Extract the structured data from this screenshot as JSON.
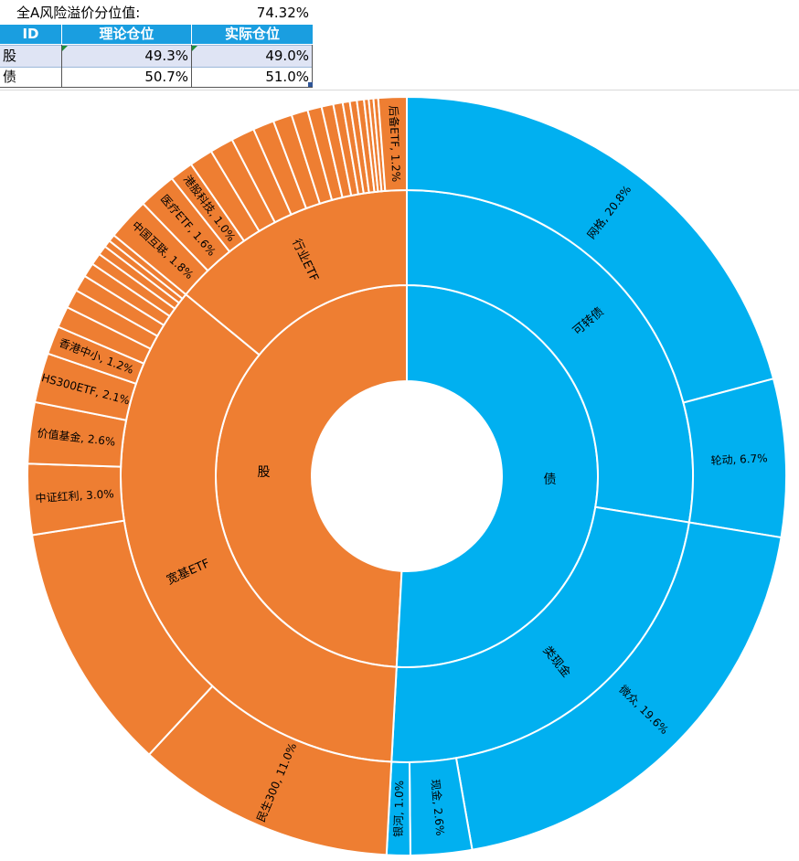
{
  "header": {
    "risk_label": "全A风险溢价分位值:",
    "risk_value": "74.32%"
  },
  "table": {
    "columns": [
      "ID",
      "理论仓位",
      "实际仓位"
    ],
    "rows": [
      {
        "id": "股",
        "theoretical": "49.3%",
        "actual": "49.0%"
      },
      {
        "id": "债",
        "theoretical": "50.7%",
        "actual": "51.0%"
      }
    ]
  },
  "colors": {
    "stock": "#ee7e32",
    "bond": "#01b0f0",
    "header_blue": "#1a9ee0",
    "row_blue": "#dfe4f4"
  },
  "chart_data": {
    "type": "sunburst",
    "title": "",
    "center_ring": [
      {
        "name": "股",
        "value": 49.0
      },
      {
        "name": "债",
        "value": 51.0
      }
    ],
    "middle_ring": [
      {
        "name": "可转债",
        "parent": "债",
        "value": 27.5
      },
      {
        "name": "类现金",
        "parent": "债",
        "value": 23.5
      },
      {
        "name": "宽基ETF",
        "parent": "股",
        "value": 35.0
      },
      {
        "name": "行业ETF",
        "parent": "股",
        "value": 14.0
      }
    ],
    "outer_ring": [
      {
        "name": "网格",
        "parent": "可转债",
        "value": 20.8,
        "label": "网格, 20.8%"
      },
      {
        "name": "轮动",
        "parent": "可转债",
        "value": 6.7,
        "label": "轮动, 6.7%"
      },
      {
        "name": "微众",
        "parent": "类现金",
        "value": 19.6,
        "label": "微众, 19.6%"
      },
      {
        "name": "现金",
        "parent": "类现金",
        "value": 2.6,
        "label": "现金, 2.6%"
      },
      {
        "name": "银河",
        "parent": "类现金",
        "value": 1.0,
        "label": "银河, 1.0%"
      },
      {
        "name": "民生300",
        "parent": "宽基ETF",
        "value": 11.0,
        "label": "民生300, 11.0%"
      },
      {
        "name": "",
        "parent": "宽基ETF",
        "value": 10.6,
        "label": ""
      },
      {
        "name": "中证红利",
        "parent": "宽基ETF",
        "value": 3.0,
        "label": "中证红利, 3.0%"
      },
      {
        "name": "价值基金",
        "parent": "宽基ETF",
        "value": 2.6,
        "label": "价值基金, 2.6%"
      },
      {
        "name": "HS300ETF",
        "parent": "宽基ETF",
        "value": 2.1,
        "label": "HS300ETF, 2.1%"
      },
      {
        "name": "香港中小",
        "parent": "宽基ETF",
        "value": 1.2,
        "label": "香港中小, 1.2%"
      },
      {
        "name": "",
        "parent": "宽基ETF",
        "value": 0.9,
        "label": ""
      },
      {
        "name": "",
        "parent": "宽基ETF",
        "value": 0.8,
        "label": ""
      },
      {
        "name": "",
        "parent": "宽基ETF",
        "value": 0.7,
        "label": ""
      },
      {
        "name": "",
        "parent": "宽基ETF",
        "value": 0.6,
        "label": ""
      },
      {
        "name": "",
        "parent": "宽基ETF",
        "value": 0.5,
        "label": ""
      },
      {
        "name": "",
        "parent": "宽基ETF",
        "value": 0.4,
        "label": ""
      },
      {
        "name": "",
        "parent": "宽基ETF",
        "value": 0.3,
        "label": ""
      },
      {
        "name": "",
        "parent": "宽基ETF",
        "value": 0.3,
        "label": ""
      },
      {
        "name": "中国互联",
        "parent": "行业ETF",
        "value": 1.8,
        "label": "中国互联, 1.8%"
      },
      {
        "name": "医疗ETF",
        "parent": "行业ETF",
        "value": 1.6,
        "label": "医疗ETF, 1.6%"
      },
      {
        "name": "港股科技",
        "parent": "行业ETF",
        "value": 1.0,
        "label": "港股科技, 1.0%"
      },
      {
        "name": "",
        "parent": "行业ETF",
        "value": 1.0,
        "label": ""
      },
      {
        "name": "",
        "parent": "行业ETF",
        "value": 1.0,
        "label": ""
      },
      {
        "name": "",
        "parent": "行业ETF",
        "value": 1.0,
        "label": ""
      },
      {
        "name": "",
        "parent": "行业ETF",
        "value": 0.9,
        "label": ""
      },
      {
        "name": "",
        "parent": "行业ETF",
        "value": 0.8,
        "label": ""
      },
      {
        "name": "",
        "parent": "行业ETF",
        "value": 0.7,
        "label": ""
      },
      {
        "name": "",
        "parent": "行业ETF",
        "value": 0.6,
        "label": ""
      },
      {
        "name": "",
        "parent": "行业ETF",
        "value": 0.5,
        "label": ""
      },
      {
        "name": "",
        "parent": "行业ETF",
        "value": 0.4,
        "label": ""
      },
      {
        "name": "",
        "parent": "行业ETF",
        "value": 0.3,
        "label": ""
      },
      {
        "name": "",
        "parent": "行业ETF",
        "value": 0.3,
        "label": ""
      },
      {
        "name": "",
        "parent": "行业ETF",
        "value": 0.3,
        "label": ""
      },
      {
        "name": "",
        "parent": "行业ETF",
        "value": 0.2,
        "label": ""
      },
      {
        "name": "",
        "parent": "行业ETF",
        "value": 0.2,
        "label": ""
      },
      {
        "name": "",
        "parent": "行业ETF",
        "value": 0.2,
        "label": ""
      },
      {
        "name": "后备ETF",
        "parent": "行业ETF",
        "value": 1.2,
        "label": "后备ETF, 1.2%"
      }
    ]
  }
}
